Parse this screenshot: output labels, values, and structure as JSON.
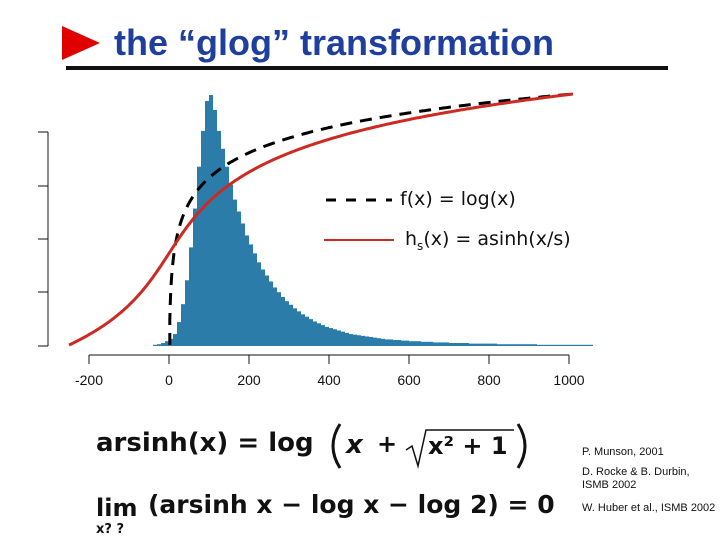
{
  "slide": {
    "title": "the “glog” transformation",
    "legend": {
      "log_label": "f(x) = log(x)",
      "asinh_prefix": "h",
      "asinh_sub": "s",
      "asinh_rest": "(x) = asinh(x/s)"
    },
    "formula1": {
      "lhs": "arsinh(x) = log",
      "x": "x",
      "plus": "+",
      "radicand": "x² + 1"
    },
    "formula2": {
      "lim": "lim",
      "sub": "x? ?",
      "body": "(arsinh x − log x − log 2) = 0"
    },
    "references": [
      "P. Munson, 2001",
      "D. Rocke & B. Durbin, ISMB 2002",
      "W. Huber et al., ISMB 2002"
    ],
    "colors": {
      "bars": "#2b7ca8",
      "asinh": "#cc2a22",
      "log": "#000000",
      "bullet": "#e00000",
      "title": "#1f3f9f"
    }
  },
  "chart_data": {
    "type": "bar",
    "xlim": [
      -220,
      1010
    ],
    "x_ticks": [
      -200,
      0,
      200,
      400,
      600,
      800,
      1000
    ],
    "x_tick_labels": [
      "-200",
      "0",
      "200",
      "400",
      "600",
      "800",
      "1000"
    ],
    "bin_width": 10,
    "bins_start": -40,
    "bar_counts": [
      2,
      3,
      5,
      8,
      12,
      20,
      40,
      70,
      110,
      165,
      230,
      300,
      360,
      410,
      420,
      395,
      360,
      330,
      300,
      270,
      245,
      225,
      205,
      185,
      170,
      155,
      140,
      128,
      118,
      108,
      98,
      90,
      82,
      75,
      69,
      63,
      58,
      53,
      49,
      45,
      41,
      38,
      35,
      32,
      30,
      28,
      26,
      24,
      22,
      20,
      19,
      18,
      17,
      16,
      15,
      14,
      13,
      12,
      11,
      11,
      10,
      10,
      9,
      9,
      8,
      8,
      8,
      7,
      7,
      7,
      6,
      6,
      6,
      6,
      5,
      5,
      5,
      5,
      5,
      4,
      4,
      4,
      4,
      4,
      4,
      4,
      3,
      3,
      3,
      3,
      3,
      3,
      3,
      3,
      3,
      3,
      2,
      2,
      2,
      2,
      2,
      2,
      2,
      2,
      2,
      2,
      2,
      2,
      2,
      2
    ],
    "series": [
      {
        "name": "f(x) = log(x)",
        "style": "dashed",
        "color": "#000000"
      },
      {
        "name": "hs(x) = asinh(x/s)",
        "style": "solid",
        "color": "#cc2a22"
      }
    ],
    "grid": false
  }
}
